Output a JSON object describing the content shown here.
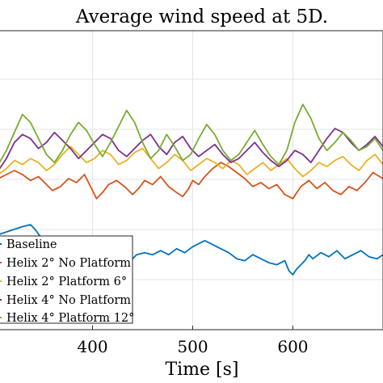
{
  "chart_data": {
    "type": "line",
    "title": "Average wind speed at 5D.",
    "xlabel": "Time [s]",
    "ylabel": "",
    "xlim": [
      306,
      690
    ],
    "ylim": [
      0,
      1
    ],
    "xticks": [
      400,
      500,
      600
    ],
    "xtick_labels": [
      "400",
      "500",
      "600"
    ],
    "grid": true,
    "legend_location": "bottom-left",
    "series": [
      {
        "name": "Baseline",
        "color": "#0072BD",
        "x": [
          306,
          318,
          330,
          338,
          342,
          348,
          356,
          364,
          372,
          380,
          388,
          396,
          404,
          412,
          420,
          428,
          436,
          444,
          452,
          460,
          468,
          476,
          484,
          492,
          500,
          508,
          512,
          520,
          528,
          536,
          544,
          552,
          560,
          568,
          576,
          584,
          592,
          596,
          600,
          604,
          608,
          612,
          616,
          620,
          628,
          636,
          644,
          652,
          660,
          668,
          676,
          684,
          690
        ],
        "y": [
          0.2,
          0.22,
          0.24,
          0.25,
          0.23,
          0.19,
          0.13,
          0.11,
          0.14,
          0.18,
          0.12,
          0.1,
          0.12,
          0.09,
          0.13,
          0.07,
          0.06,
          0.1,
          0.11,
          0.1,
          0.12,
          0.1,
          0.13,
          0.11,
          0.14,
          0.16,
          0.17,
          0.15,
          0.13,
          0.11,
          0.08,
          0.07,
          0.1,
          0.08,
          0.06,
          0.05,
          0.07,
          0.02,
          0.0,
          0.03,
          0.05,
          0.07,
          0.1,
          0.08,
          0.11,
          0.09,
          0.12,
          0.08,
          0.1,
          0.12,
          0.09,
          0.08,
          0.1
        ]
      },
      {
        "name": "Helix 2° No Platform",
        "color": "#D95319",
        "x": [
          306,
          314,
          322,
          330,
          338,
          346,
          354,
          360,
          368,
          376,
          384,
          392,
          398,
          404,
          410,
          416,
          424,
          432,
          440,
          446,
          452,
          460,
          468,
          476,
          484,
          490,
          496,
          500,
          506,
          512,
          520,
          528,
          536,
          544,
          552,
          560,
          568,
          576,
          584,
          592,
          600,
          608,
          616,
          624,
          632,
          640,
          648,
          656,
          664,
          672,
          680,
          690
        ],
        "y": [
          0.48,
          0.5,
          0.52,
          0.5,
          0.47,
          0.49,
          0.45,
          0.42,
          0.44,
          0.48,
          0.46,
          0.5,
          0.44,
          0.38,
          0.41,
          0.45,
          0.47,
          0.44,
          0.4,
          0.43,
          0.47,
          0.45,
          0.49,
          0.44,
          0.41,
          0.39,
          0.43,
          0.47,
          0.45,
          0.49,
          0.53,
          0.56,
          0.54,
          0.51,
          0.48,
          0.44,
          0.46,
          0.43,
          0.45,
          0.4,
          0.38,
          0.44,
          0.47,
          0.43,
          0.46,
          0.42,
          0.4,
          0.44,
          0.42,
          0.46,
          0.51,
          0.48
        ]
      },
      {
        "name": "Helix 2° Platform 6°",
        "color": "#EDB120",
        "x": [
          306,
          314,
          322,
          330,
          338,
          346,
          354,
          362,
          370,
          378,
          386,
          394,
          402,
          410,
          418,
          426,
          434,
          442,
          450,
          458,
          466,
          474,
          482,
          490,
          498,
          506,
          514,
          522,
          530,
          538,
          546,
          554,
          562,
          570,
          578,
          586,
          594,
          602,
          610,
          618,
          626,
          634,
          642,
          650,
          658,
          666,
          674,
          682,
          690
        ],
        "y": [
          0.5,
          0.53,
          0.57,
          0.55,
          0.58,
          0.56,
          0.52,
          0.55,
          0.6,
          0.64,
          0.6,
          0.56,
          0.58,
          0.62,
          0.6,
          0.55,
          0.57,
          0.61,
          0.63,
          0.58,
          0.53,
          0.56,
          0.6,
          0.57,
          0.52,
          0.55,
          0.58,
          0.56,
          0.53,
          0.57,
          0.55,
          0.5,
          0.53,
          0.56,
          0.52,
          0.55,
          0.58,
          0.53,
          0.49,
          0.52,
          0.56,
          0.54,
          0.57,
          0.59,
          0.55,
          0.52,
          0.57,
          0.6,
          0.55
        ]
      },
      {
        "name": "Helix 4° No Platform",
        "color": "#7E2F8E",
        "x": [
          306,
          314,
          322,
          330,
          338,
          346,
          354,
          362,
          370,
          378,
          386,
          394,
          402,
          410,
          418,
          426,
          434,
          442,
          450,
          458,
          466,
          474,
          482,
          490,
          498,
          506,
          514,
          522,
          530,
          538,
          546,
          554,
          562,
          570,
          578,
          586,
          594,
          602,
          610,
          618,
          626,
          634,
          642,
          650,
          658,
          666,
          674,
          682,
          690
        ],
        "y": [
          0.52,
          0.58,
          0.66,
          0.7,
          0.68,
          0.63,
          0.66,
          0.71,
          0.67,
          0.63,
          0.58,
          0.62,
          0.66,
          0.7,
          0.68,
          0.62,
          0.59,
          0.63,
          0.67,
          0.7,
          0.64,
          0.6,
          0.66,
          0.69,
          0.63,
          0.59,
          0.62,
          0.65,
          0.6,
          0.56,
          0.58,
          0.62,
          0.66,
          0.61,
          0.57,
          0.54,
          0.57,
          0.62,
          0.6,
          0.56,
          0.62,
          0.68,
          0.73,
          0.71,
          0.66,
          0.62,
          0.65,
          0.69,
          0.64
        ]
      },
      {
        "name": "Helix 4° Platform 12°",
        "color": "#77AC30",
        "x": [
          306,
          314,
          322,
          330,
          338,
          346,
          354,
          362,
          370,
          378,
          386,
          394,
          402,
          410,
          418,
          426,
          434,
          442,
          450,
          458,
          466,
          474,
          482,
          490,
          498,
          506,
          514,
          522,
          530,
          538,
          546,
          554,
          562,
          570,
          578,
          586,
          594,
          602,
          610,
          618,
          626,
          634,
          642,
          650,
          658,
          666,
          674,
          682,
          690
        ],
        "y": [
          0.55,
          0.62,
          0.71,
          0.8,
          0.76,
          0.68,
          0.6,
          0.56,
          0.62,
          0.7,
          0.76,
          0.72,
          0.65,
          0.59,
          0.66,
          0.74,
          0.82,
          0.76,
          0.66,
          0.58,
          0.62,
          0.7,
          0.64,
          0.57,
          0.6,
          0.68,
          0.75,
          0.7,
          0.62,
          0.57,
          0.6,
          0.66,
          0.72,
          0.65,
          0.59,
          0.55,
          0.62,
          0.76,
          0.85,
          0.78,
          0.68,
          0.62,
          0.66,
          0.71,
          0.67,
          0.62,
          0.64,
          0.68,
          0.62
        ]
      }
    ]
  }
}
